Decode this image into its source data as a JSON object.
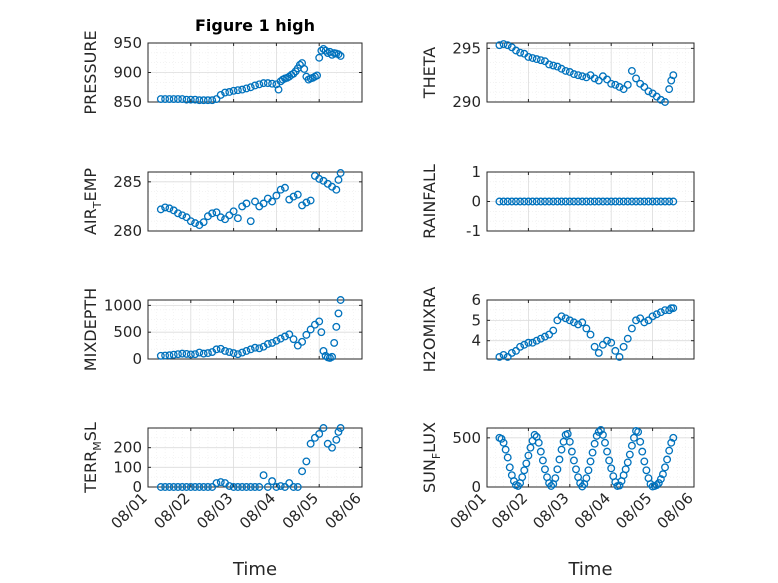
{
  "figure": {
    "title": "Figure 1 high",
    "xlabel_left": "Time",
    "xlabel_right": "Time",
    "colors": {
      "marker": "#0072BD",
      "axis": "#262626",
      "grid": "#dcdcdc",
      "minor_grid": "#ececec"
    }
  },
  "chart_data": [
    {
      "type": "scatter",
      "panel": "top-left",
      "ylabel": "PRESSURE",
      "ylabel_parts": [
        "PRESSURE",
        "",
        ""
      ],
      "ylim": [
        850,
        950
      ],
      "yticks": [
        850,
        900,
        950
      ],
      "yticklabels": [
        "850",
        "900",
        "950"
      ],
      "xlim": [
        0,
        5
      ],
      "xtick_labels_visible": false,
      "x": [
        0.3,
        0.4,
        0.5,
        0.6,
        0.7,
        0.8,
        0.9,
        1.0,
        1.1,
        1.2,
        1.3,
        1.4,
        1.5,
        1.6,
        1.7,
        1.8,
        1.9,
        2.0,
        2.1,
        2.2,
        2.3,
        2.4,
        2.5,
        2.6,
        2.7,
        2.8,
        2.9,
        3.0,
        3.05,
        3.1,
        3.15,
        3.2,
        3.25,
        3.3,
        3.35,
        3.4,
        3.45,
        3.5,
        3.55,
        3.6,
        3.65,
        3.7,
        3.75,
        3.8,
        3.85,
        3.9,
        3.95,
        4.0,
        4.05,
        4.1,
        4.15,
        4.2,
        4.25,
        4.3,
        4.35,
        4.4,
        4.45,
        4.5
      ],
      "y": [
        855,
        855,
        855,
        855,
        855,
        855,
        854,
        854,
        854,
        853,
        853,
        853,
        853,
        855,
        862,
        866,
        867,
        869,
        870,
        871,
        873,
        875,
        878,
        880,
        882,
        882,
        881,
        880,
        871,
        885,
        888,
        890,
        891,
        893,
        896,
        898,
        902,
        907,
        913,
        916,
        906,
        893,
        888,
        890,
        891,
        893,
        895,
        925,
        937,
        940,
        937,
        933,
        935,
        930,
        933,
        932,
        931,
        928
      ]
    },
    {
      "type": "scatter",
      "panel": "top-right",
      "ylabel": "THETA",
      "ylabel_parts": [
        "THETA",
        "",
        ""
      ],
      "ylim": [
        290,
        295.5
      ],
      "yticks": [
        290,
        295
      ],
      "yticklabels": [
        "290",
        "295"
      ],
      "xlim": [
        0,
        5
      ],
      "xtick_labels_visible": false,
      "x": [
        0.3,
        0.4,
        0.5,
        0.6,
        0.7,
        0.8,
        0.9,
        1.0,
        1.1,
        1.2,
        1.3,
        1.4,
        1.5,
        1.6,
        1.7,
        1.8,
        1.9,
        2.0,
        2.1,
        2.2,
        2.3,
        2.4,
        2.5,
        2.6,
        2.7,
        2.8,
        2.9,
        3.0,
        3.1,
        3.2,
        3.3,
        3.4,
        3.5,
        3.6,
        3.7,
        3.8,
        3.9,
        4.0,
        4.1,
        4.2,
        4.3,
        4.4,
        4.45,
        4.5
      ],
      "y": [
        295.3,
        295.4,
        295.3,
        295.1,
        294.8,
        294.6,
        294.5,
        294.2,
        294.1,
        294.0,
        293.9,
        293.8,
        293.5,
        293.4,
        293.3,
        293.1,
        292.9,
        292.8,
        292.6,
        292.5,
        292.4,
        292.3,
        292.5,
        292.2,
        292.0,
        292.4,
        292.1,
        291.7,
        291.6,
        291.4,
        291.2,
        291.6,
        292.9,
        292.2,
        291.7,
        291.4,
        291.0,
        290.8,
        290.5,
        290.2,
        290.0,
        291.2,
        292.0,
        292.5
      ]
    },
    {
      "type": "scatter",
      "panel": "row2-left",
      "ylabel": "AIR_TEMP",
      "ylabel_parts": [
        "AIR",
        "T",
        "EMP"
      ],
      "ylim": [
        280,
        286
      ],
      "yticks": [
        280,
        285
      ],
      "yticklabels": [
        "280",
        "285"
      ],
      "xlim": [
        0,
        5
      ],
      "xtick_labels_visible": false,
      "x": [
        0.3,
        0.4,
        0.5,
        0.6,
        0.7,
        0.8,
        0.9,
        1.0,
        1.1,
        1.2,
        1.3,
        1.4,
        1.5,
        1.6,
        1.7,
        1.8,
        1.9,
        2.0,
        2.1,
        2.2,
        2.3,
        2.4,
        2.5,
        2.6,
        2.7,
        2.8,
        2.9,
        3.0,
        3.1,
        3.2,
        3.3,
        3.4,
        3.5,
        3.6,
        3.7,
        3.8,
        3.9,
        4.0,
        4.1,
        4.2,
        4.3,
        4.4,
        4.45,
        4.5
      ],
      "y": [
        282.2,
        282.4,
        282.3,
        282.1,
        281.8,
        281.6,
        281.4,
        281.0,
        280.8,
        280.6,
        280.9,
        281.5,
        281.8,
        281.9,
        281.4,
        281.2,
        281.6,
        282.0,
        281.3,
        282.5,
        282.8,
        281.0,
        283.0,
        282.5,
        282.8,
        283.3,
        283.0,
        283.6,
        284.2,
        284.4,
        283.2,
        283.5,
        283.7,
        282.6,
        282.9,
        283.1,
        285.6,
        285.3,
        285.1,
        284.8,
        284.5,
        284.2,
        285.2,
        285.9
      ]
    },
    {
      "type": "scatter",
      "panel": "row2-right",
      "ylabel": "RAINFALL",
      "ylabel_parts": [
        "RAINFALL",
        "",
        ""
      ],
      "ylim": [
        -1,
        1
      ],
      "yticks": [
        -1,
        0,
        1
      ],
      "yticklabels": [
        "-1",
        "0",
        "1"
      ],
      "xlim": [
        0,
        5
      ],
      "xtick_labels_visible": false,
      "x": [
        0.3,
        0.4,
        0.5,
        0.6,
        0.7,
        0.8,
        0.9,
        1.0,
        1.1,
        1.2,
        1.3,
        1.4,
        1.5,
        1.6,
        1.7,
        1.8,
        1.9,
        2.0,
        2.1,
        2.2,
        2.3,
        2.4,
        2.5,
        2.6,
        2.7,
        2.8,
        2.9,
        3.0,
        3.1,
        3.2,
        3.3,
        3.4,
        3.5,
        3.6,
        3.7,
        3.8,
        3.9,
        4.0,
        4.1,
        4.2,
        4.3,
        4.4,
        4.5
      ],
      "y": [
        0,
        0,
        0,
        0,
        0,
        0,
        0,
        0,
        0,
        0,
        0,
        0,
        0,
        0,
        0,
        0,
        0,
        0,
        0,
        0,
        0,
        0,
        0,
        0,
        0,
        0,
        0,
        0,
        0,
        0,
        0,
        0,
        0,
        0,
        0,
        0,
        0,
        0,
        0,
        0,
        0,
        0,
        0
      ]
    },
    {
      "type": "scatter",
      "panel": "row3-left",
      "ylabel": "MIXDEPTH",
      "ylabel_parts": [
        "MIXDEPTH",
        "",
        ""
      ],
      "ylim": [
        0,
        1100
      ],
      "yticks": [
        0,
        500,
        1000
      ],
      "yticklabels": [
        "0",
        "500",
        "1000"
      ],
      "xlim": [
        0,
        5
      ],
      "xtick_labels_visible": false,
      "x": [
        0.3,
        0.4,
        0.5,
        0.6,
        0.7,
        0.8,
        0.9,
        1.0,
        1.1,
        1.2,
        1.3,
        1.4,
        1.5,
        1.6,
        1.7,
        1.8,
        1.9,
        2.0,
        2.1,
        2.2,
        2.3,
        2.4,
        2.5,
        2.6,
        2.7,
        2.8,
        2.9,
        3.0,
        3.1,
        3.2,
        3.3,
        3.4,
        3.5,
        3.6,
        3.7,
        3.8,
        3.9,
        4.0,
        4.05,
        4.1,
        4.15,
        4.2,
        4.25,
        4.3,
        4.35,
        4.4,
        4.45,
        4.5
      ],
      "y": [
        60,
        65,
        70,
        80,
        90,
        100,
        95,
        85,
        90,
        120,
        100,
        110,
        130,
        180,
        190,
        150,
        130,
        110,
        90,
        120,
        150,
        180,
        210,
        200,
        230,
        280,
        300,
        340,
        380,
        420,
        460,
        370,
        250,
        320,
        450,
        550,
        640,
        700,
        500,
        150,
        60,
        30,
        20,
        40,
        300,
        600,
        850,
        1100
      ]
    },
    {
      "type": "scatter",
      "panel": "row3-right",
      "ylabel": "H2OMIXRA",
      "ylabel_parts": [
        "H2OMIXRA",
        "",
        ""
      ],
      "ylim": [
        3.1,
        6
      ],
      "yticks": [
        4,
        5,
        6
      ],
      "yticklabels": [
        "4",
        "5",
        "6"
      ],
      "xlim": [
        0,
        5
      ],
      "xtick_labels_visible": false,
      "x": [
        0.3,
        0.4,
        0.5,
        0.6,
        0.7,
        0.8,
        0.9,
        1.0,
        1.1,
        1.2,
        1.3,
        1.4,
        1.5,
        1.6,
        1.7,
        1.8,
        1.9,
        2.0,
        2.1,
        2.2,
        2.3,
        2.4,
        2.5,
        2.6,
        2.7,
        2.8,
        2.9,
        3.0,
        3.1,
        3.2,
        3.3,
        3.4,
        3.5,
        3.6,
        3.7,
        3.8,
        3.9,
        4.0,
        4.1,
        4.2,
        4.3,
        4.4,
        4.45,
        4.5
      ],
      "y": [
        3.2,
        3.3,
        3.2,
        3.4,
        3.5,
        3.7,
        3.8,
        3.9,
        3.9,
        4.0,
        4.1,
        4.2,
        4.3,
        4.5,
        5.0,
        5.2,
        5.1,
        5.0,
        4.9,
        4.8,
        4.9,
        4.6,
        4.3,
        3.7,
        3.4,
        3.8,
        4.0,
        3.9,
        3.5,
        3.2,
        3.7,
        4.1,
        4.6,
        5.0,
        5.1,
        4.9,
        5.0,
        5.2,
        5.3,
        5.4,
        5.5,
        5.5,
        5.6,
        5.6
      ]
    },
    {
      "type": "scatter",
      "panel": "bottom-left",
      "ylabel": "TERR_MSL",
      "ylabel_parts": [
        "TERR",
        "M",
        "SL"
      ],
      "ylim": [
        0,
        300
      ],
      "yticks": [
        0,
        100,
        200
      ],
      "yticklabels": [
        "0",
        "100",
        "200"
      ],
      "xlim": [
        0,
        5
      ],
      "xtick_labels_visible": true,
      "xticks": [
        0,
        1,
        2,
        3,
        4,
        5
      ],
      "xticklabels": [
        "08/01",
        "08/02",
        "08/03",
        "08/04",
        "08/05",
        "08/06"
      ],
      "x": [
        0.3,
        0.4,
        0.5,
        0.6,
        0.7,
        0.8,
        0.9,
        1.0,
        1.1,
        1.2,
        1.3,
        1.4,
        1.5,
        1.6,
        1.7,
        1.8,
        1.9,
        2.0,
        2.1,
        2.2,
        2.3,
        2.4,
        2.5,
        2.6,
        2.7,
        2.8,
        2.9,
        3.0,
        3.1,
        3.2,
        3.3,
        3.4,
        3.5,
        3.6,
        3.7,
        3.8,
        3.9,
        4.0,
        4.1,
        4.2,
        4.3,
        4.4,
        4.45,
        4.5
      ],
      "y": [
        0,
        0,
        0,
        0,
        0,
        0,
        0,
        0,
        0,
        0,
        0,
        0,
        0,
        20,
        25,
        20,
        5,
        0,
        0,
        0,
        0,
        0,
        0,
        0,
        60,
        0,
        30,
        0,
        5,
        0,
        20,
        0,
        0,
        80,
        130,
        220,
        250,
        270,
        300,
        220,
        200,
        240,
        280,
        300
      ]
    },
    {
      "type": "scatter",
      "panel": "bottom-right",
      "ylabel": "SUN_FLUX",
      "ylabel_parts": [
        "SUN",
        "F",
        "LUX"
      ],
      "ylim": [
        0,
        600
      ],
      "yticks": [
        0,
        500
      ],
      "yticklabels": [
        "0",
        "500"
      ],
      "xlim": [
        0,
        5
      ],
      "xtick_labels_visible": true,
      "xticks": [
        0,
        1,
        2,
        3,
        4,
        5
      ],
      "xticklabels": [
        "08/01",
        "08/02",
        "08/03",
        "08/04",
        "08/05",
        "08/06"
      ],
      "x": [
        0.3,
        0.35,
        0.4,
        0.45,
        0.5,
        0.55,
        0.6,
        0.65,
        0.7,
        0.75,
        0.8,
        0.85,
        0.9,
        0.95,
        1.0,
        1.05,
        1.1,
        1.15,
        1.2,
        1.25,
        1.3,
        1.35,
        1.4,
        1.45,
        1.5,
        1.55,
        1.6,
        1.65,
        1.7,
        1.75,
        1.8,
        1.85,
        1.9,
        1.95,
        2.0,
        2.05,
        2.1,
        2.15,
        2.2,
        2.25,
        2.3,
        2.35,
        2.4,
        2.45,
        2.5,
        2.55,
        2.6,
        2.65,
        2.7,
        2.75,
        2.8,
        2.85,
        2.9,
        2.95,
        3.0,
        3.05,
        3.1,
        3.15,
        3.2,
        3.25,
        3.3,
        3.35,
        3.4,
        3.45,
        3.5,
        3.55,
        3.6,
        3.65,
        3.7,
        3.75,
        3.8,
        3.85,
        3.9,
        3.95,
        4.0,
        4.05,
        4.1,
        4.15,
        4.2,
        4.25,
        4.3,
        4.35,
        4.4,
        4.45,
        4.5
      ],
      "y": [
        500,
        490,
        450,
        380,
        300,
        200,
        120,
        60,
        20,
        10,
        40,
        100,
        170,
        240,
        320,
        400,
        470,
        530,
        510,
        450,
        360,
        270,
        180,
        100,
        40,
        10,
        30,
        90,
        180,
        280,
        380,
        460,
        530,
        540,
        460,
        360,
        270,
        180,
        100,
        40,
        5,
        30,
        90,
        170,
        260,
        350,
        440,
        520,
        560,
        580,
        530,
        450,
        360,
        270,
        190,
        110,
        50,
        10,
        15,
        60,
        120,
        180,
        250,
        330,
        420,
        500,
        570,
        560,
        460,
        360,
        260,
        170,
        90,
        30,
        5,
        10,
        20,
        40,
        80,
        130,
        200,
        280,
        370,
        450,
        500
      ]
    }
  ]
}
